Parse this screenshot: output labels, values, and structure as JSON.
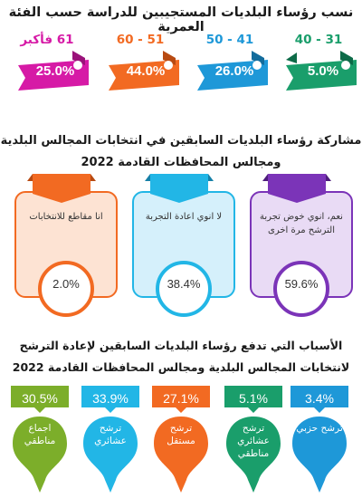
{
  "section1": {
    "title": "نسب رؤساء البلديات المستجيبين للدراسة حسب الفئة العمرية",
    "groups": [
      {
        "label": "31 - 40",
        "value_text": "5.0%",
        "value": 5.0,
        "color": "#1a9e6b"
      },
      {
        "label": "41 - 50",
        "value_text": "26.0%",
        "value": 26.0,
        "color": "#1e98d8"
      },
      {
        "label": "51 - 60",
        "value_text": "44.0%",
        "value": 44.0,
        "color": "#f26a22"
      },
      {
        "label": "61 فأكبر",
        "value_text": "25.0%",
        "value": 25.0,
        "color": "#d61aa6"
      }
    ]
  },
  "section2": {
    "title_line1": "مشاركة رؤساء البلديات السابقين في انتخابات المجالس البلدية",
    "title_line2": "ومجالس المحافظات القادمة 2022",
    "cards": [
      {
        "text": "نعم، انوي خوض تجربة الترشح مرة اخرى",
        "value_text": "59.6%",
        "value": 59.6,
        "color": "#7b34b8",
        "fill": "#e9dbf5"
      },
      {
        "text": "لا انوي اعادة التجربة",
        "value_text": "38.4%",
        "value": 38.4,
        "color": "#22b6e6",
        "fill": "#d5f0fb"
      },
      {
        "text": "انا مقاطع للانتخابات",
        "value_text": "2.0%",
        "value": 2.0,
        "color": "#f26a22",
        "fill": "#fde3d3"
      }
    ]
  },
  "section3": {
    "title_line1": "الأسباب التي تدفع رؤساء البلديات السابقين لإعادة الترشح",
    "title_line2": "لانتخابات المجالس البلدية ومجالس المحافظات القادمة 2022",
    "reasons": [
      {
        "value_text": "3.4%",
        "value": 3.4,
        "text": "ترشح حزبي",
        "color": "#1e98d8"
      },
      {
        "value_text": "5.1%",
        "value": 5.1,
        "text": "ترشح عشائري مناطقي",
        "color": "#1a9e6b"
      },
      {
        "value_text": "27.1%",
        "value": 27.1,
        "text": "ترشح مستقل",
        "color": "#f26a22"
      },
      {
        "value_text": "33.9%",
        "value": 33.9,
        "text": "ترشح عشائري",
        "color": "#22b6e6"
      },
      {
        "value_text": "30.5%",
        "value": 30.5,
        "text": "اجماع مناطقي",
        "color": "#7cae2a"
      }
    ]
  },
  "chart_data": [
    {
      "type": "bar",
      "categories": [
        "31 - 40",
        "41 - 50",
        "51 - 60",
        "61 فأكبر"
      ],
      "values": [
        5.0,
        26.0,
        44.0,
        25.0
      ],
      "title": "نسب رؤساء البلديات المستجيبين للدراسة حسب الفئة العمرية"
    },
    {
      "type": "bar",
      "categories": [
        "نعم، انوي خوض تجربة الترشح مرة اخرى",
        "لا انوي اعادة التجربة",
        "انا مقاطع للانتخابات"
      ],
      "values": [
        59.6,
        38.4,
        2.0
      ],
      "title": "مشاركة رؤساء البلديات السابقين في انتخابات المجالس البلدية ومجالس المحافظات القادمة 2022"
    },
    {
      "type": "bar",
      "categories": [
        "ترشح حزبي",
        "ترشح عشائري مناطقي",
        "ترشح مستقل",
        "ترشح عشائري",
        "اجماع مناطقي"
      ],
      "values": [
        3.4,
        5.1,
        27.1,
        33.9,
        30.5
      ],
      "title": "الأسباب التي تدفع رؤساء البلديات السابقين لإعادة الترشح لانتخابات المجالس البلدية ومجالس المحافظات القادمة 2022"
    }
  ]
}
